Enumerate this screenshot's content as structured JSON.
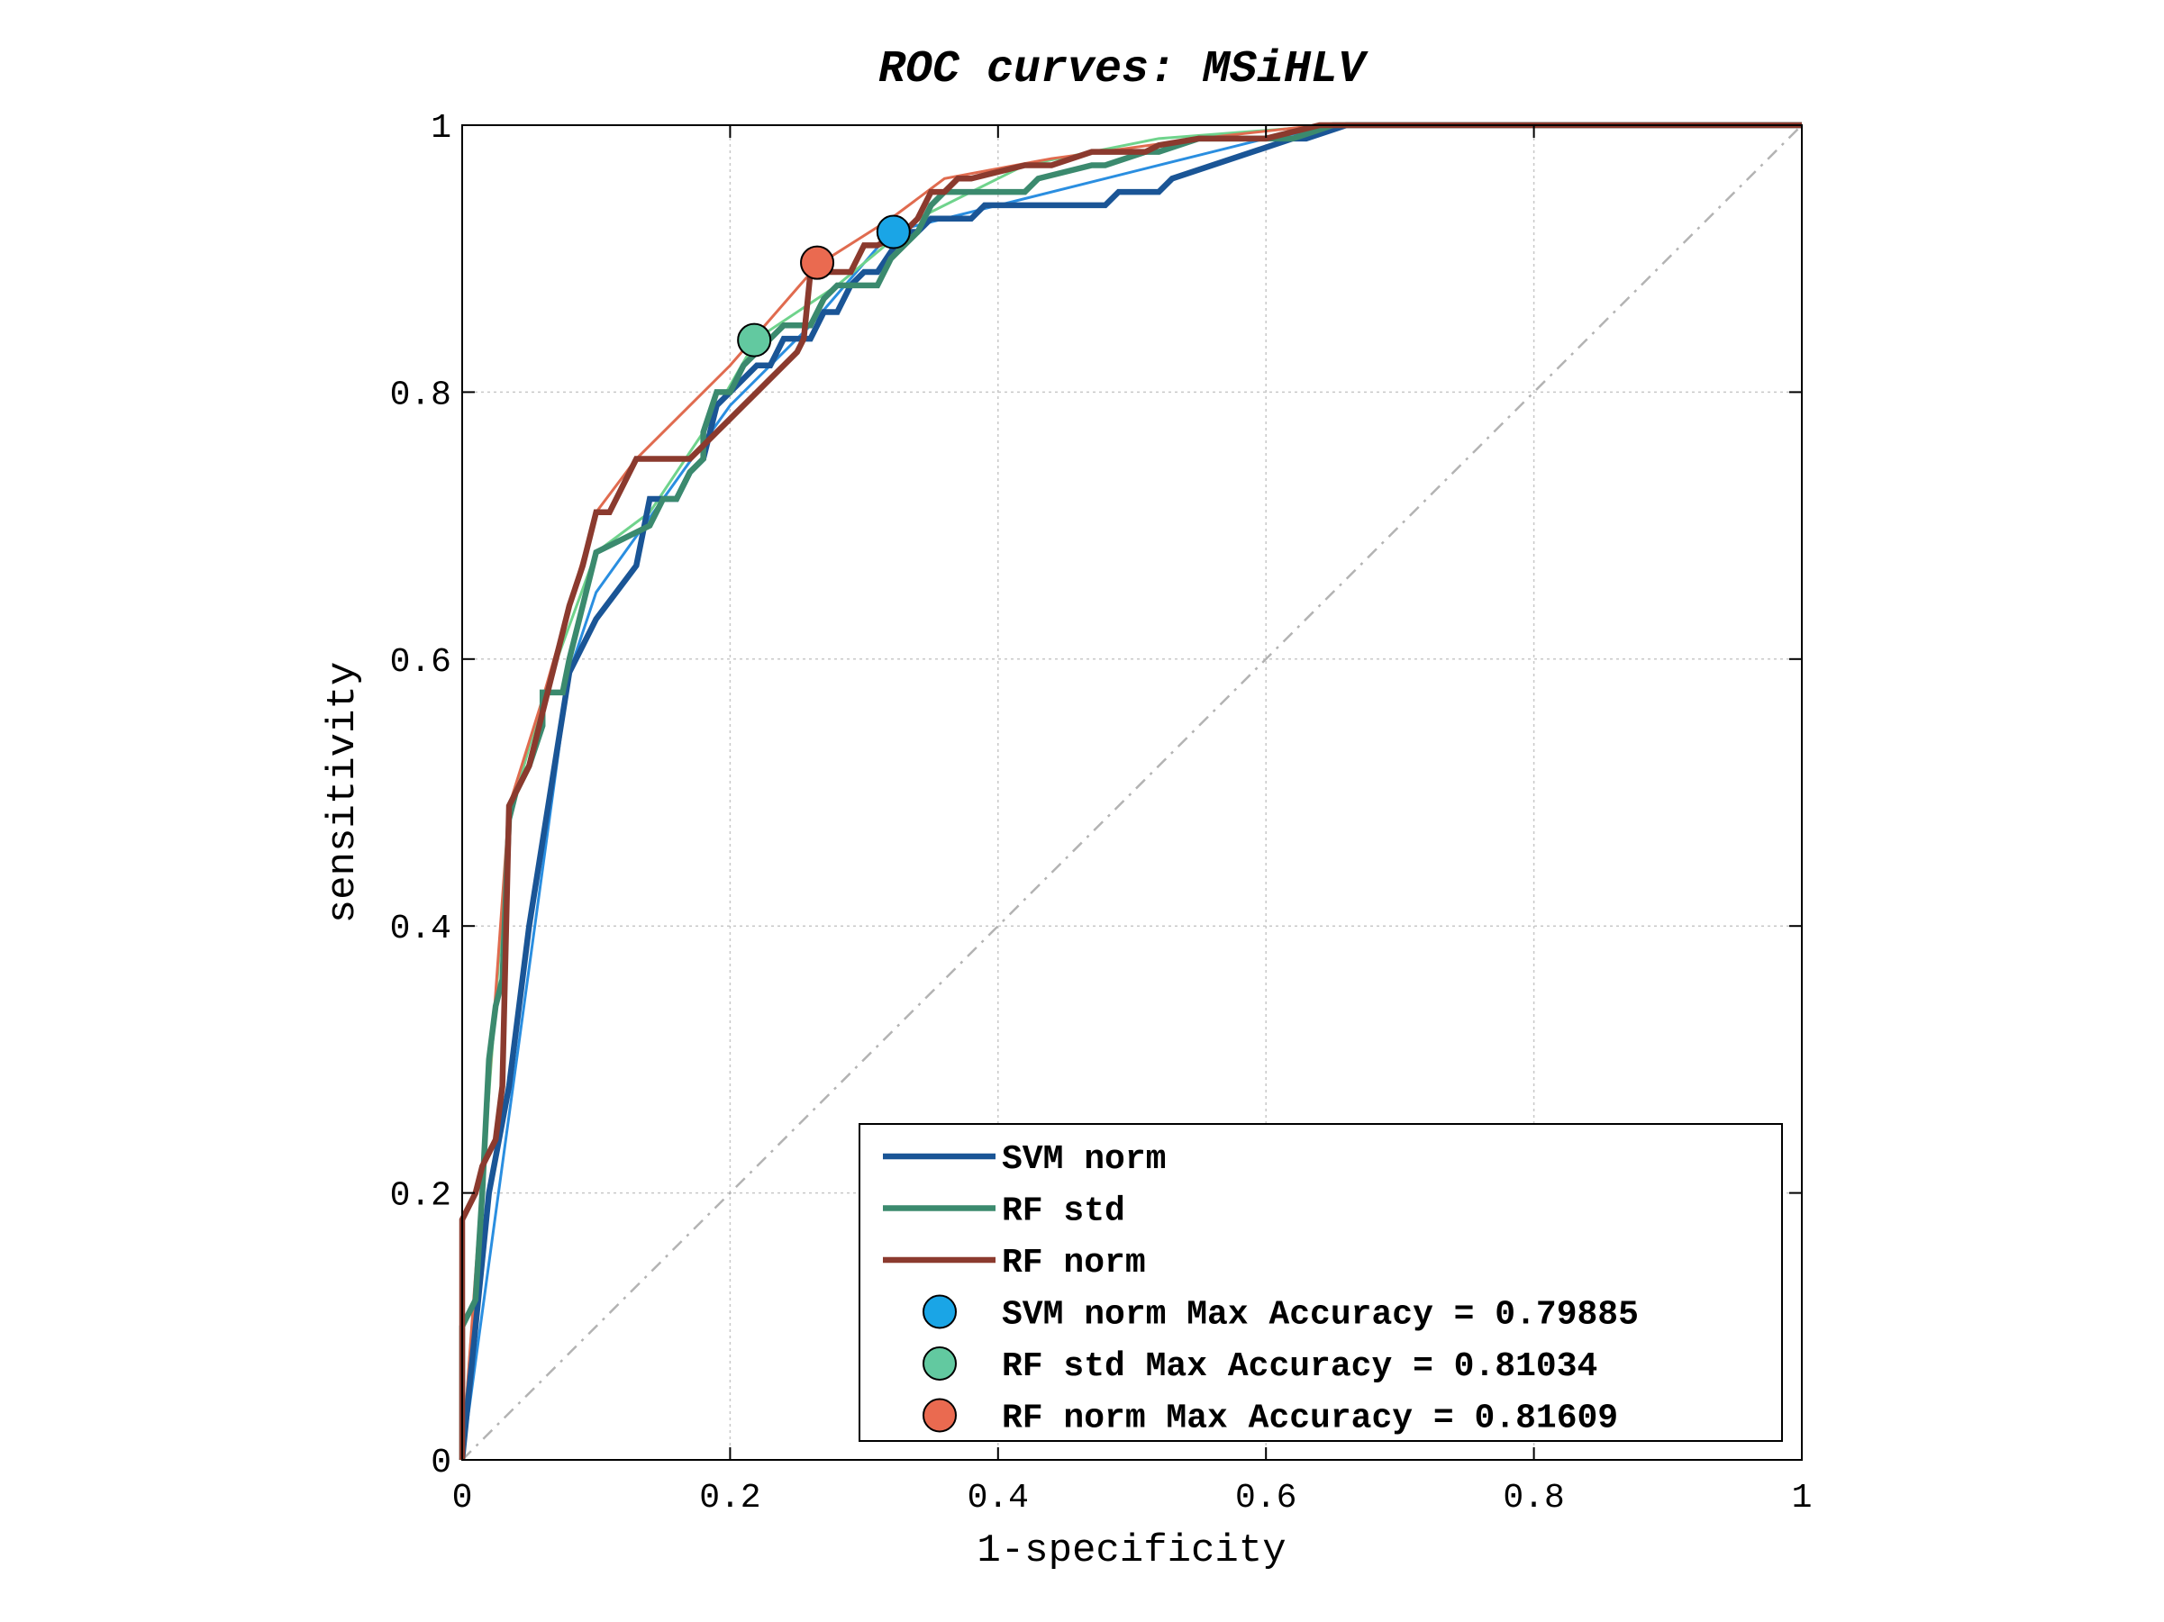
{
  "chart_data": {
    "type": "line",
    "title": "ROC curves: MSiHLV",
    "xlabel": "1-specificity",
    "ylabel": "sensitivity",
    "xlim": [
      0,
      1
    ],
    "ylim": [
      0,
      1
    ],
    "grid": true,
    "legend_position": "bottom-right",
    "xticks": [
      "0",
      "0.2",
      "0.4",
      "0.6",
      "0.8",
      "1"
    ],
    "yticks": [
      "0",
      "0.2",
      "0.4",
      "0.6",
      "0.8",
      "1"
    ],
    "reference_line": {
      "x": [
        0,
        1
      ],
      "y": [
        0,
        1
      ],
      "color": "#b3b3b3"
    },
    "series": [
      {
        "name": "SVM norm",
        "color": "#1a5596",
        "x": [
          0,
          0.02,
          0.035,
          0.05,
          0.08,
          0.1,
          0.13,
          0.14,
          0.15,
          0.16,
          0.17,
          0.18,
          0.19,
          0.2,
          0.22,
          0.23,
          0.24,
          0.25,
          0.26,
          0.27,
          0.28,
          0.29,
          0.3,
          0.31,
          0.33,
          0.34,
          0.35,
          0.37,
          0.38,
          0.39,
          0.4,
          0.41,
          0.48,
          0.49,
          0.52,
          0.53,
          0.62,
          0.63,
          0.66,
          1.0
        ],
        "y": [
          0,
          0.2,
          0.28,
          0.4,
          0.59,
          0.63,
          0.67,
          0.72,
          0.72,
          0.72,
          0.74,
          0.75,
          0.79,
          0.8,
          0.82,
          0.82,
          0.84,
          0.84,
          0.84,
          0.86,
          0.86,
          0.88,
          0.89,
          0.89,
          0.92,
          0.92,
          0.93,
          0.93,
          0.93,
          0.94,
          0.94,
          0.94,
          0.94,
          0.95,
          0.95,
          0.96,
          0.99,
          0.99,
          1.0,
          1.0
        ]
      },
      {
        "name": "RF std",
        "color": "#3b8a6e",
        "x": [
          0,
          0,
          0.01,
          0.015,
          0.02,
          0.025,
          0.03,
          0.035,
          0.04,
          0.05,
          0.06,
          0.06,
          0.075,
          0.08,
          0.09,
          0.1,
          0.12,
          0.14,
          0.15,
          0.16,
          0.17,
          0.18,
          0.18,
          0.19,
          0.2,
          0.21,
          0.22,
          0.23,
          0.24,
          0.25,
          0.26,
          0.27,
          0.28,
          0.29,
          0.3,
          0.31,
          0.32,
          0.33,
          0.34,
          0.35,
          0.36,
          0.37,
          0.38,
          0.42,
          0.43,
          0.47,
          0.48,
          0.51,
          0.52,
          0.55,
          0.62,
          0.65,
          1.0
        ],
        "y": [
          0,
          0.1,
          0.12,
          0.2,
          0.3,
          0.34,
          0.36,
          0.48,
          0.5,
          0.52,
          0.55,
          0.575,
          0.575,
          0.6,
          0.64,
          0.68,
          0.69,
          0.7,
          0.72,
          0.72,
          0.74,
          0.75,
          0.77,
          0.8,
          0.8,
          0.82,
          0.83,
          0.84,
          0.85,
          0.85,
          0.85,
          0.87,
          0.88,
          0.88,
          0.88,
          0.88,
          0.9,
          0.91,
          0.92,
          0.94,
          0.95,
          0.95,
          0.95,
          0.95,
          0.96,
          0.97,
          0.97,
          0.98,
          0.98,
          0.99,
          0.99,
          1.0,
          1.0
        ]
      },
      {
        "name": "RF norm",
        "color": "#8b3a2e",
        "x": [
          0,
          0,
          0.01,
          0.015,
          0.02,
          0.025,
          0.03,
          0.035,
          0.04,
          0.05,
          0.06,
          0.07,
          0.08,
          0.09,
          0.1,
          0.11,
          0.12,
          0.13,
          0.17,
          0.18,
          0.19,
          0.2,
          0.21,
          0.22,
          0.23,
          0.24,
          0.25,
          0.255,
          0.26,
          0.27,
          0.28,
          0.29,
          0.3,
          0.31,
          0.33,
          0.34,
          0.35,
          0.36,
          0.37,
          0.38,
          0.42,
          0.44,
          0.47,
          0.51,
          0.52,
          0.55,
          0.6,
          0.64,
          1.0
        ],
        "y": [
          0,
          0.18,
          0.2,
          0.22,
          0.23,
          0.24,
          0.28,
          0.49,
          0.5,
          0.52,
          0.56,
          0.6,
          0.64,
          0.67,
          0.71,
          0.71,
          0.73,
          0.75,
          0.75,
          0.76,
          0.77,
          0.78,
          0.79,
          0.8,
          0.81,
          0.82,
          0.83,
          0.84,
          0.89,
          0.89,
          0.89,
          0.89,
          0.91,
          0.91,
          0.92,
          0.93,
          0.95,
          0.95,
          0.96,
          0.96,
          0.97,
          0.97,
          0.98,
          0.98,
          0.985,
          0.99,
          0.99,
          1.0,
          1.0
        ]
      },
      {
        "color": "#2a8ee0",
        "x": [
          0,
          0.08,
          0.1,
          0.15,
          0.2,
          0.26,
          0.32,
          0.4,
          0.52,
          0.6,
          0.66,
          1.0
        ],
        "y": [
          0,
          0.59,
          0.65,
          0.72,
          0.79,
          0.85,
          0.92,
          0.94,
          0.97,
          0.99,
          1.0,
          1.0
        ]
      },
      {
        "color": "#6fd38c",
        "x": [
          0,
          0.035,
          0.06,
          0.1,
          0.14,
          0.18,
          0.22,
          0.28,
          0.34,
          0.42,
          0.52,
          0.65,
          1.0
        ],
        "y": [
          0,
          0.48,
          0.57,
          0.68,
          0.71,
          0.77,
          0.84,
          0.88,
          0.93,
          0.97,
          0.99,
          1.0,
          1.0
        ]
      },
      {
        "color": "#e06b4f",
        "x": [
          0,
          0.035,
          0.06,
          0.1,
          0.13,
          0.2,
          0.265,
          0.32,
          0.36,
          0.44,
          0.55,
          0.64,
          1.0
        ],
        "y": [
          0,
          0.49,
          0.57,
          0.71,
          0.75,
          0.82,
          0.895,
          0.93,
          0.96,
          0.975,
          0.99,
          1.0,
          1.0
        ]
      }
    ],
    "max_accuracy_points": [
      {
        "name": "SVM norm Max Accuracy = 0.79885",
        "x": 0.322,
        "y": 0.92,
        "color": "#1aa5e6"
      },
      {
        "name": "RF std Max Accuracy = 0.81034",
        "x": 0.218,
        "y": 0.839,
        "color": "#62c9a0"
      },
      {
        "name": "RF norm Max Accuracy = 0.81609",
        "x": 0.265,
        "y": 0.897,
        "color": "#ea6a50"
      }
    ]
  }
}
